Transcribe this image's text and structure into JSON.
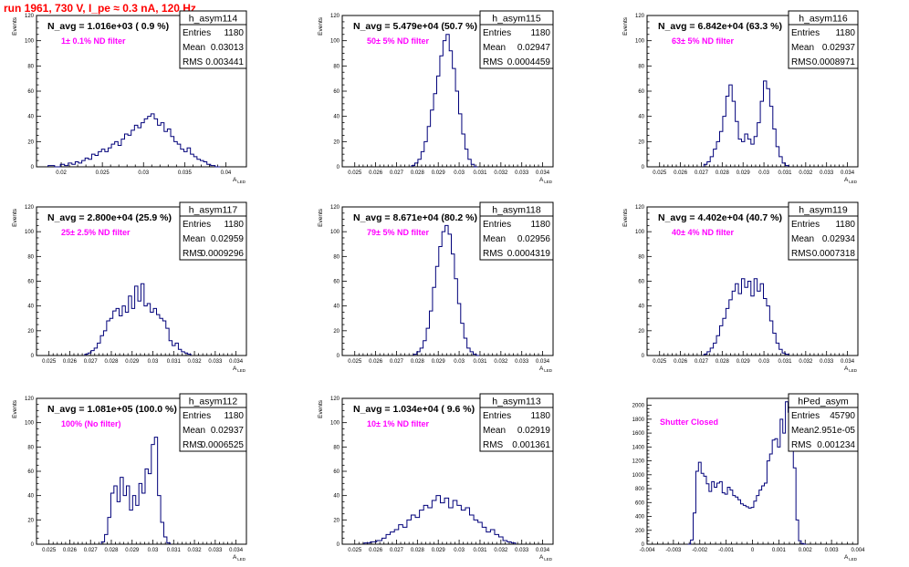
{
  "page": {
    "title": "run 1961,   730 V, I_pe ≈ 0.3 nA, 120 Hz",
    "title_color": "#ff0000"
  },
  "colors": {
    "histogram": "#00007a",
    "filter_label": "#ff00ff"
  },
  "chart_data": [
    {
      "type": "bar",
      "name": "h_asym114",
      "annotation": "N_avg = 1.016e+03 ( 0.9 %)",
      "filter_label": "1± 0.1% ND filter",
      "stats": [
        [
          "Entries",
          "1180"
        ],
        [
          "Mean",
          "0.03013"
        ],
        [
          "RMS",
          "0.003441"
        ]
      ],
      "xlabel": "A_LED",
      "ylabel": "Events",
      "xlim": [
        0.017,
        0.0425
      ],
      "ylim": [
        0,
        120
      ],
      "xticks": [
        0.02,
        0.025,
        0.03,
        0.035,
        0.04
      ],
      "xtick_labels": [
        "0.02",
        "0.025",
        "0.03",
        "0.035",
        "0.04"
      ],
      "yticks": [
        0,
        20,
        40,
        60,
        80,
        100,
        120
      ],
      "x": [
        0.0188,
        0.0196,
        0.0202,
        0.0206,
        0.0211,
        0.0215,
        0.0219,
        0.0223,
        0.0227,
        0.0231,
        0.0235,
        0.0239,
        0.0243,
        0.0247,
        0.0251,
        0.0255,
        0.0259,
        0.0263,
        0.0267,
        0.0271,
        0.0275,
        0.0279,
        0.0283,
        0.0287,
        0.0291,
        0.0295,
        0.0299,
        0.0303,
        0.0307,
        0.0311,
        0.0315,
        0.0319,
        0.0323,
        0.0327,
        0.0331,
        0.0335,
        0.0339,
        0.0343,
        0.0347,
        0.0351,
        0.0355,
        0.0359,
        0.0363,
        0.0367,
        0.0371,
        0.0375,
        0.0379,
        0.0384,
        0.039
      ],
      "values": [
        1,
        0,
        2,
        1,
        3,
        2,
        4,
        3,
        5,
        7,
        6,
        10,
        9,
        12,
        14,
        12,
        15,
        18,
        20,
        17,
        22,
        26,
        25,
        29,
        33,
        31,
        35,
        38,
        40,
        42,
        38,
        33,
        35,
        28,
        30,
        24,
        20,
        18,
        14,
        12,
        15,
        10,
        8,
        6,
        5,
        4,
        2,
        1,
        0
      ]
    },
    {
      "type": "bar",
      "name": "h_asym115",
      "annotation": "N_avg = 5.479e+04 (50.7 %)",
      "filter_label": "50± 5% ND filter",
      "stats": [
        [
          "Entries",
          "1180"
        ],
        [
          "Mean",
          "0.02947"
        ],
        [
          "RMS",
          "0.0004459"
        ]
      ],
      "xlabel": "A_LED",
      "ylabel": "Events",
      "xlim": [
        0.0244,
        0.0345
      ],
      "ylim": [
        0,
        120
      ],
      "xticks": [
        0.025,
        0.026,
        0.027,
        0.028,
        0.029,
        0.03,
        0.031,
        0.032,
        0.033,
        0.034
      ],
      "xtick_labels": [
        "0.025",
        "0.026",
        "0.027",
        "0.028",
        "0.029",
        "0.03",
        "0.031",
        "0.032",
        "0.033",
        "0.034"
      ],
      "yticks": [
        0,
        20,
        40,
        60,
        80,
        100,
        120
      ],
      "x": [
        0.0278,
        0.02795,
        0.0281,
        0.02825,
        0.0284,
        0.02855,
        0.0287,
        0.02885,
        0.029,
        0.02915,
        0.0293,
        0.02945,
        0.0296,
        0.02975,
        0.0299,
        0.03005,
        0.0302,
        0.03035,
        0.0305,
        0.03065,
        0.0308
      ],
      "values": [
        1,
        3,
        6,
        12,
        20,
        32,
        45,
        58,
        72,
        88,
        100,
        105,
        92,
        78,
        60,
        42,
        26,
        14,
        6,
        2,
        0
      ]
    },
    {
      "type": "bar",
      "name": "h_asym116",
      "annotation": "N_avg = 6.842e+04 (63.3 %)",
      "filter_label": "63± 5% ND filter",
      "stats": [
        [
          "Entries",
          "1180"
        ],
        [
          "Mean",
          "0.02937"
        ],
        [
          "RMS",
          "0.0008971"
        ]
      ],
      "xlabel": "A_LED",
      "ylabel": "Events",
      "xlim": [
        0.0244,
        0.0345
      ],
      "ylim": [
        0,
        120
      ],
      "xticks": [
        0.025,
        0.026,
        0.027,
        0.028,
        0.029,
        0.03,
        0.031,
        0.032,
        0.033,
        0.034
      ],
      "xtick_labels": [
        "0.025",
        "0.026",
        "0.027",
        "0.028",
        "0.029",
        "0.03",
        "0.031",
        "0.032",
        "0.033",
        "0.034"
      ],
      "yticks": [
        0,
        20,
        40,
        60,
        80,
        100,
        120
      ],
      "x": [
        0.0272,
        0.02735,
        0.0275,
        0.02765,
        0.0278,
        0.02795,
        0.0281,
        0.02825,
        0.0284,
        0.02855,
        0.0287,
        0.02885,
        0.029,
        0.02915,
        0.0293,
        0.02945,
        0.0296,
        0.02975,
        0.0299,
        0.03005,
        0.0302,
        0.03035,
        0.0305,
        0.03065,
        0.0308,
        0.03095,
        0.0311
      ],
      "values": [
        2,
        4,
        8,
        14,
        20,
        28,
        40,
        56,
        65,
        52,
        36,
        22,
        20,
        26,
        22,
        18,
        24,
        35,
        52,
        68,
        62,
        48,
        30,
        16,
        8,
        3,
        1
      ]
    },
    {
      "type": "bar",
      "name": "h_asym117",
      "annotation": "N_avg = 2.800e+04 (25.9 %)",
      "filter_label": "25± 2.5% ND filter",
      "stats": [
        [
          "Entries",
          "1180"
        ],
        [
          "Mean",
          "0.02959"
        ],
        [
          "RMS",
          "0.0009296"
        ]
      ],
      "xlabel": "A_LED",
      "ylabel": "Events",
      "xlim": [
        0.0244,
        0.0345
      ],
      "ylim": [
        0,
        120
      ],
      "xticks": [
        0.025,
        0.026,
        0.027,
        0.028,
        0.029,
        0.03,
        0.031,
        0.032,
        0.033,
        0.034
      ],
      "xtick_labels": [
        "0.025",
        "0.026",
        "0.027",
        "0.028",
        "0.029",
        "0.03",
        "0.031",
        "0.032",
        "0.033",
        "0.034"
      ],
      "yticks": [
        0,
        20,
        40,
        60,
        80,
        100,
        120
      ],
      "x": [
        0.0268,
        0.02695,
        0.0271,
        0.02725,
        0.0274,
        0.02755,
        0.0277,
        0.02785,
        0.028,
        0.02815,
        0.0283,
        0.02845,
        0.0286,
        0.02875,
        0.0289,
        0.02905,
        0.0292,
        0.02935,
        0.0295,
        0.02965,
        0.0298,
        0.02995,
        0.0301,
        0.03025,
        0.0304,
        0.03055,
        0.0307,
        0.03085,
        0.031,
        0.03115,
        0.0313,
        0.03145,
        0.0316,
        0.03175
      ],
      "values": [
        1,
        2,
        4,
        6,
        10,
        16,
        20,
        28,
        30,
        36,
        38,
        32,
        40,
        35,
        48,
        38,
        56,
        44,
        58,
        40,
        42,
        35,
        38,
        33,
        30,
        28,
        22,
        12,
        8,
        10,
        5,
        3,
        2,
        1
      ]
    },
    {
      "type": "bar",
      "name": "h_asym118",
      "annotation": "N_avg = 8.671e+04 (80.2 %)",
      "filter_label": "79± 5% ND filter",
      "stats": [
        [
          "Entries",
          "1180"
        ],
        [
          "Mean",
          "0.02956"
        ],
        [
          "RMS",
          "0.0004319"
        ]
      ],
      "xlabel": "A_LED",
      "ylabel": "Events",
      "xlim": [
        0.0244,
        0.0345
      ],
      "ylim": [
        0,
        120
      ],
      "xticks": [
        0.025,
        0.026,
        0.027,
        0.028,
        0.029,
        0.03,
        0.031,
        0.032,
        0.033,
        0.034
      ],
      "xtick_labels": [
        "0.025",
        "0.026",
        "0.027",
        "0.028",
        "0.029",
        "0.03",
        "0.031",
        "0.032",
        "0.033",
        "0.034"
      ],
      "yticks": [
        0,
        20,
        40,
        60,
        80,
        100,
        120
      ],
      "x": [
        0.0279,
        0.02805,
        0.0282,
        0.02835,
        0.0285,
        0.02865,
        0.0288,
        0.02895,
        0.0291,
        0.02925,
        0.0294,
        0.02955,
        0.0297,
        0.02985,
        0.03,
        0.03015,
        0.0303,
        0.03045,
        0.0306,
        0.03075,
        0.0309
      ],
      "values": [
        1,
        3,
        6,
        12,
        22,
        36,
        55,
        72,
        88,
        100,
        105,
        98,
        82,
        62,
        42,
        26,
        14,
        6,
        3,
        1,
        0
      ]
    },
    {
      "type": "bar",
      "name": "h_asym119",
      "annotation": "N_avg = 4.402e+04 (40.7 %)",
      "filter_label": "40± 4% ND filter",
      "stats": [
        [
          "Entries",
          "1180"
        ],
        [
          "Mean",
          "0.02934"
        ],
        [
          "RMS",
          "0.0007318"
        ]
      ],
      "xlabel": "A_LED",
      "ylabel": "Events",
      "xlim": [
        0.0244,
        0.0345
      ],
      "ylim": [
        0,
        120
      ],
      "xticks": [
        0.025,
        0.026,
        0.027,
        0.028,
        0.029,
        0.03,
        0.031,
        0.032,
        0.033,
        0.034
      ],
      "xtick_labels": [
        "0.025",
        "0.026",
        "0.027",
        "0.028",
        "0.029",
        "0.03",
        "0.031",
        "0.032",
        "0.033",
        "0.034"
      ],
      "yticks": [
        0,
        20,
        40,
        60,
        80,
        100,
        120
      ],
      "x": [
        0.0272,
        0.02735,
        0.0275,
        0.02765,
        0.0278,
        0.02795,
        0.0281,
        0.02825,
        0.0284,
        0.02855,
        0.0287,
        0.02885,
        0.029,
        0.02915,
        0.0293,
        0.02945,
        0.0296,
        0.02975,
        0.0299,
        0.03005,
        0.0302,
        0.03035,
        0.0305,
        0.03065,
        0.0308,
        0.03095,
        0.0311
      ],
      "values": [
        1,
        3,
        6,
        10,
        16,
        24,
        30,
        38,
        45,
        52,
        58,
        50,
        62,
        55,
        60,
        48,
        62,
        52,
        58,
        46,
        40,
        28,
        18,
        10,
        5,
        2,
        1
      ]
    },
    {
      "type": "bar",
      "name": "h_asym112",
      "annotation": "N_avg = 1.081e+05 (100.0 %)",
      "filter_label": "100% (No filter)",
      "stats": [
        [
          "Entries",
          "1180"
        ],
        [
          "Mean",
          "0.02937"
        ],
        [
          "RMS",
          "0.0006525"
        ]
      ],
      "xlabel": "A_LED",
      "ylabel": "Events",
      "xlim": [
        0.0244,
        0.0345
      ],
      "ylim": [
        0,
        120
      ],
      "xticks": [
        0.025,
        0.026,
        0.027,
        0.028,
        0.029,
        0.03,
        0.031,
        0.032,
        0.033,
        0.034
      ],
      "xtick_labels": [
        "0.025",
        "0.026",
        "0.027",
        "0.028",
        "0.029",
        "0.03",
        "0.031",
        "0.032",
        "0.033",
        "0.034"
      ],
      "yticks": [
        0,
        20,
        40,
        60,
        80,
        100,
        120
      ],
      "x": [
        0.0276,
        0.02775,
        0.0279,
        0.02805,
        0.0282,
        0.02835,
        0.0285,
        0.02865,
        0.0288,
        0.02895,
        0.0291,
        0.02925,
        0.0294,
        0.02955,
        0.0297,
        0.02985,
        0.03,
        0.03015,
        0.0303,
        0.03045,
        0.0306,
        0.03075
      ],
      "values": [
        2,
        8,
        22,
        42,
        48,
        35,
        55,
        40,
        48,
        28,
        40,
        32,
        50,
        42,
        62,
        58,
        82,
        88,
        40,
        18,
        6,
        1
      ]
    },
    {
      "type": "bar",
      "name": "h_asym113",
      "annotation": "N_avg = 1.034e+04 ( 9.6 %)",
      "filter_label": "10± 1% ND filter",
      "stats": [
        [
          "Entries",
          "1180"
        ],
        [
          "Mean",
          "0.02919"
        ],
        [
          "RMS",
          "0.001361"
        ]
      ],
      "xlabel": "A_LED",
      "ylabel": "Events",
      "xlim": [
        0.0244,
        0.0345
      ],
      "ylim": [
        0,
        120
      ],
      "xticks": [
        0.025,
        0.026,
        0.027,
        0.028,
        0.029,
        0.03,
        0.031,
        0.032,
        0.033,
        0.034
      ],
      "xtick_labels": [
        "0.025",
        "0.026",
        "0.027",
        "0.028",
        "0.029",
        "0.03",
        "0.031",
        "0.032",
        "0.033",
        "0.034"
      ],
      "yticks": [
        0,
        20,
        40,
        60,
        80,
        100,
        120
      ],
      "x": [
        0.0256,
        0.0259,
        0.0262,
        0.0264,
        0.0266,
        0.0268,
        0.027,
        0.0272,
        0.0274,
        0.0276,
        0.0278,
        0.028,
        0.0282,
        0.0284,
        0.0286,
        0.0288,
        0.029,
        0.0292,
        0.0294,
        0.0296,
        0.0298,
        0.03,
        0.0302,
        0.0304,
        0.0306,
        0.0308,
        0.031,
        0.0312,
        0.0314,
        0.0316,
        0.0318,
        0.032,
        0.0322,
        0.0324,
        0.0326
      ],
      "values": [
        1,
        2,
        3,
        5,
        8,
        10,
        12,
        16,
        14,
        20,
        24,
        22,
        28,
        32,
        30,
        36,
        40,
        34,
        38,
        30,
        36,
        32,
        28,
        30,
        24,
        20,
        18,
        14,
        10,
        12,
        8,
        6,
        3,
        2,
        1
      ]
    },
    {
      "type": "bar",
      "name": "hPed_asym",
      "annotation": "",
      "filter_label": "Shutter Closed",
      "stats": [
        [
          "Entries",
          "45790"
        ],
        [
          "Mean",
          "2.951e-05"
        ],
        [
          "RMS",
          "0.001234"
        ]
      ],
      "xlabel": "A_LED",
      "ylabel": "",
      "xlim": [
        -0.004,
        0.004
      ],
      "ylim": [
        0,
        2100
      ],
      "xticks": [
        -0.004,
        -0.003,
        -0.002,
        -0.001,
        0,
        0.001,
        0.002,
        0.003,
        0.004
      ],
      "xtick_labels": [
        "-0.004",
        "-0.003",
        "-0.002",
        "-0.001",
        "0",
        "0.001",
        "0.002",
        "0.003",
        "0.004"
      ],
      "yticks": [
        0,
        200,
        400,
        600,
        800,
        1000,
        1200,
        1400,
        1600,
        1800,
        2000
      ],
      "x": [
        -0.0024,
        -0.0023,
        -0.0022,
        -0.0021,
        -0.002,
        -0.0019,
        -0.0018,
        -0.0017,
        -0.0016,
        -0.0015,
        -0.0014,
        -0.0013,
        -0.0012,
        -0.0011,
        -0.001,
        -0.0009,
        -0.0008,
        -0.0007,
        -0.0006,
        -0.0005,
        -0.0004,
        -0.0003,
        -0.0002,
        -0.0001,
        0,
        0.0001,
        0.0002,
        0.0003,
        0.0004,
        0.0005,
        0.0006,
        0.0007,
        0.0008,
        0.0009,
        0.001,
        0.0011,
        0.0012,
        0.0013,
        0.0014,
        0.0015,
        0.0016,
        0.0017,
        0.0018,
        0.0019,
        0.002
      ],
      "values": [
        0,
        60,
        450,
        1050,
        1180,
        1020,
        980,
        870,
        760,
        900,
        820,
        880,
        900,
        740,
        720,
        820,
        780,
        700,
        680,
        640,
        580,
        560,
        540,
        520,
        530,
        620,
        700,
        780,
        840,
        880,
        1200,
        1300,
        1500,
        1520,
        1400,
        1800,
        1600,
        2050,
        1900,
        1700,
        1100,
        350,
        50,
        10,
        0
      ]
    }
  ]
}
